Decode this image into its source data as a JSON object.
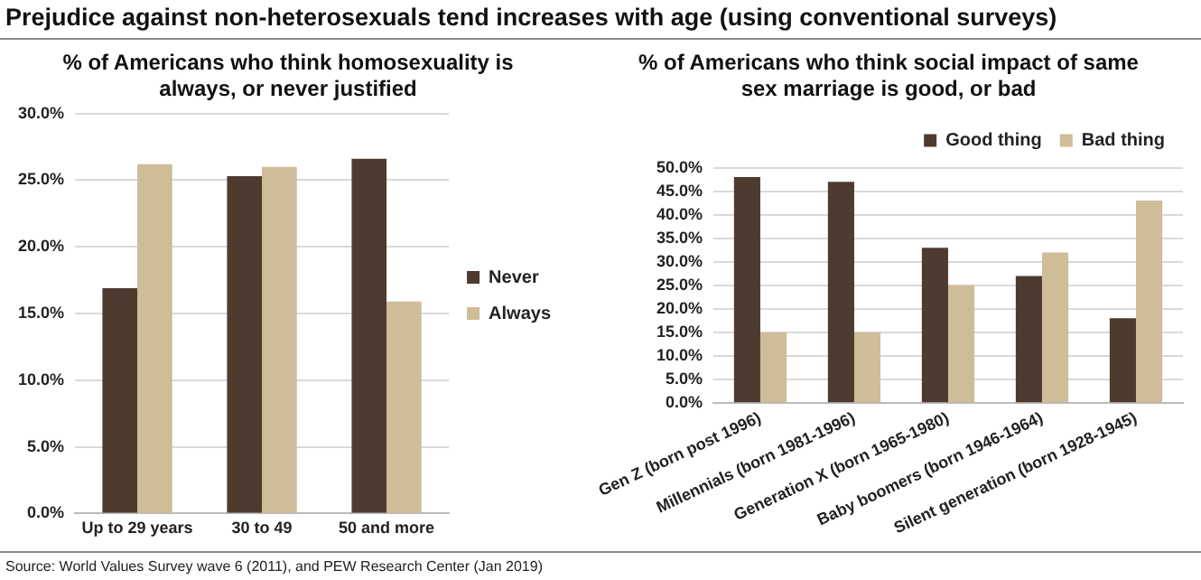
{
  "chart_data": [
    {
      "type": "bar",
      "title": "% of Americans who think homosexuality is always, or never justified",
      "annotations": [
        "Prejudice against non-heterosexuals tend increases with age (using conventional surveys)"
      ],
      "categories": [
        "Up to 29 years",
        "30 to 49",
        "50 and more"
      ],
      "series": [
        {
          "name": "Never",
          "color": "#4e3b2f",
          "values": [
            16.9,
            25.3,
            26.6
          ]
        },
        {
          "name": "Always",
          "color": "#cfbc98",
          "values": [
            26.2,
            26.0,
            15.9
          ]
        }
      ],
      "ylim": [
        0,
        30
      ],
      "yticks": [
        {
          "value": 0,
          "label": "0.0%"
        },
        {
          "value": 5,
          "label": "5.0%"
        },
        {
          "value": 10,
          "label": "10.0%"
        },
        {
          "value": 15,
          "label": "15.0%"
        },
        {
          "value": 20,
          "label": "20.0%"
        },
        {
          "value": 25,
          "label": "25.0%"
        },
        {
          "value": 30,
          "label": "30.0%"
        }
      ],
      "grid": "y",
      "legend": "right"
    },
    {
      "type": "bar",
      "title": "% of Americans who think social impact of same sex marriage is good, or bad",
      "annotations": [
        "Source: World Values Survey wave 6 (2011), and PEW Research Center (Jan 2019)"
      ],
      "categories": [
        "Gen Z (born post 1996)",
        "Millennials (born 1981-1996)",
        "Generation X (born 1965-1980)",
        "Baby boomers (born 1946-1964)",
        "Silent generation (born 1928-1945)"
      ],
      "series": [
        {
          "name": "Good thing",
          "color": "#4e3b2f",
          "values": [
            48,
            47,
            33,
            27,
            18
          ]
        },
        {
          "name": "Bad thing",
          "color": "#cfbc98",
          "values": [
            15,
            15,
            25,
            32,
            43
          ]
        }
      ],
      "ylim": [
        0,
        50
      ],
      "yticks": [
        {
          "value": 0,
          "label": "0.0%"
        },
        {
          "value": 5,
          "label": "5.0%"
        },
        {
          "value": 10,
          "label": "10.0%"
        },
        {
          "value": 15,
          "label": "15.0%"
        },
        {
          "value": 20,
          "label": "20.0%"
        },
        {
          "value": 25,
          "label": "25.0%"
        },
        {
          "value": 30,
          "label": "30.0%"
        },
        {
          "value": 35,
          "label": "35.0%"
        },
        {
          "value": 40,
          "label": "40.0%"
        },
        {
          "value": 45,
          "label": "45.0%"
        },
        {
          "value": 50,
          "label": "50.0%"
        }
      ],
      "grid": "y",
      "legend": "top right"
    }
  ]
}
